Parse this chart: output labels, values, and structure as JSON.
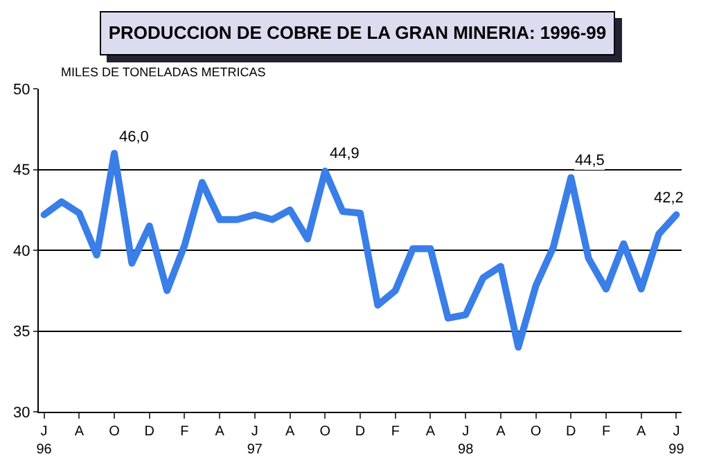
{
  "chart_data": {
    "type": "line",
    "title": "PRODUCCION DE COBRE DE LA GRAN MINERIA: 1996-99",
    "ylabel": "MILES DE TONELADAS METRICAS",
    "categories": [
      "J\n96",
      null,
      "A",
      null,
      "O",
      null,
      "D",
      null,
      "F",
      null,
      "A",
      null,
      "J\n97",
      null,
      "A",
      null,
      "O",
      null,
      "D",
      null,
      "F",
      null,
      "A",
      null,
      "J\n98",
      null,
      "A",
      null,
      "O",
      null,
      "D",
      null,
      "F",
      null,
      "A",
      null,
      "J\n99"
    ],
    "series": [
      {
        "color": "#3a7ee8",
        "values": [
          42.2,
          43.0,
          42.3,
          39.7,
          46.0,
          39.2,
          41.5,
          37.5,
          40.3,
          44.2,
          41.9,
          41.9,
          42.2,
          41.9,
          42.5,
          40.7,
          44.9,
          42.4,
          42.3,
          36.6,
          37.5,
          40.1,
          40.1,
          35.8,
          36.0,
          38.3,
          39.0,
          34.0,
          37.8,
          40.2,
          44.5,
          39.5,
          37.6,
          40.4,
          37.6,
          41.0,
          42.2
        ],
        "value_labels": [
          null,
          null,
          null,
          null,
          "46,0",
          null,
          null,
          null,
          null,
          null,
          null,
          null,
          null,
          null,
          null,
          null,
          "44,9",
          null,
          null,
          null,
          null,
          null,
          null,
          null,
          null,
          null,
          null,
          null,
          null,
          null,
          "44,5",
          null,
          null,
          null,
          null,
          null,
          "42,2"
        ]
      }
    ],
    "ylim": [
      30,
      50
    ],
    "yticks": [
      30,
      35,
      40,
      45,
      50
    ],
    "grid": "y",
    "marker": "none",
    "line_style": "solid"
  }
}
